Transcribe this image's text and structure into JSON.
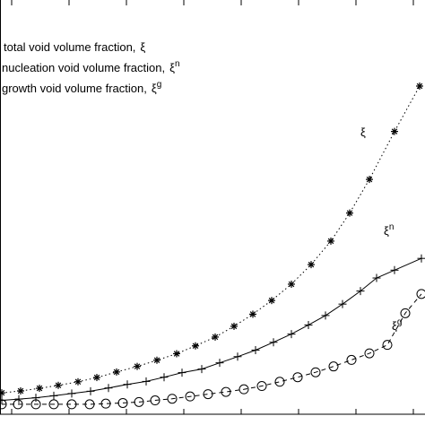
{
  "chart_data": {
    "type": "line",
    "title": "",
    "xlabel": "",
    "ylabel": "",
    "grid": false,
    "legend_position": "top-left",
    "ylim": [
      0,
      100
    ],
    "series": [
      {
        "name": "total void volume fraction,",
        "symbol": "ξ",
        "sup": "",
        "curve_label": "ξ",
        "curve_label_sup": "",
        "marker": "asterisk",
        "line": "dotted",
        "x": [
          2,
          23,
          44,
          65,
          87,
          108,
          130,
          153,
          175,
          197,
          218,
          240,
          261,
          282,
          303,
          325,
          347,
          369,
          390,
          412,
          440,
          468
        ],
        "y": [
          6,
          6.6,
          7.4,
          8.3,
          9.4,
          10.7,
          12.4,
          14.1,
          16.0,
          18.0,
          20.4,
          23.1,
          26.4,
          30.1,
          34.3,
          39.3,
          45.3,
          52.5,
          61.1,
          71.4,
          86.1,
          100
        ]
      },
      {
        "name": "nucleation void volume fraction,",
        "symbol": "ξ",
        "sup": "n",
        "curve_label": "ξ",
        "curve_label_sup": "n",
        "marker": "plus",
        "line": "solid",
        "x": [
          2,
          21,
          40,
          60,
          80,
          101,
          121,
          142,
          163,
          183,
          203,
          225,
          245,
          265,
          285,
          305,
          325,
          344,
          363,
          382,
          402,
          420,
          440,
          470
        ],
        "y": [
          3.7,
          4.1,
          4.5,
          5.1,
          5.8,
          6.5,
          7.5,
          8.6,
          9.5,
          10.8,
          12.2,
          13.3,
          15.2,
          17.1,
          19.1,
          21.5,
          24.0,
          26.8,
          29.7,
          33.2,
          37.2,
          41.2,
          43.6,
          47.2
        ]
      },
      {
        "name": "growth void volume fraction,",
        "symbol": "ξ",
        "sup": "g",
        "curve_label": "ξ",
        "curve_label_sup": "g",
        "marker": "circle",
        "line": "dashed",
        "x": [
          2,
          20,
          40,
          60,
          80,
          100,
          118,
          137,
          155,
          173,
          192,
          212,
          232,
          252,
          272,
          292,
          312,
          332,
          352,
          372,
          392,
          412,
          432,
          452,
          470
        ],
        "y": [
          2.5,
          2.5,
          2.5,
          2.5,
          2.5,
          2.5,
          2.7,
          2.9,
          3.2,
          3.7,
          4.2,
          4.9,
          5.6,
          6.3,
          7.1,
          8.1,
          9.4,
          10.8,
          12.3,
          14.1,
          16.1,
          18.1,
          20.7,
          30.4,
          36.3
        ]
      }
    ]
  }
}
